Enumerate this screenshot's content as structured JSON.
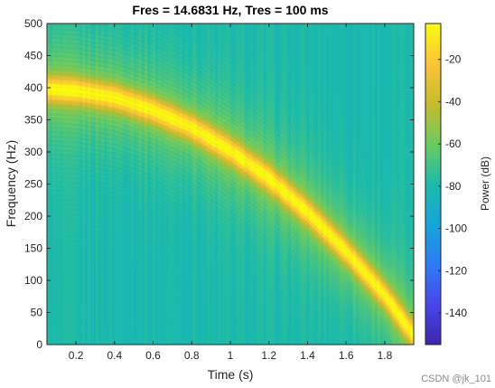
{
  "chart_data": {
    "type": "heatmap",
    "subtype": "spectrogram",
    "title": "Fres = 14.6831 Hz, Tres = 100 ms",
    "xlabel": "Time (s)",
    "ylabel": "Frequency (Hz)",
    "colorbar_label": "Power (dB)",
    "colormap": "parula",
    "xlim": [
      0.05,
      1.95
    ],
    "ylim": [
      0,
      500
    ],
    "clim": [
      -155,
      -3
    ],
    "x_ticks": [
      0.2,
      0.4,
      0.6,
      0.8,
      1,
      1.2,
      1.4,
      1.6,
      1.8
    ],
    "y_ticks": [
      0,
      50,
      100,
      150,
      200,
      250,
      300,
      350,
      400,
      450,
      500
    ],
    "colorbar_ticks": [
      -20,
      -40,
      -60,
      -80,
      -100,
      -120,
      -140
    ],
    "background_level_db": -80,
    "ridge": {
      "description": "peak power track",
      "peak_db": -3,
      "points": [
        {
          "t": 0.05,
          "f": 398
        },
        {
          "t": 0.2,
          "f": 395
        },
        {
          "t": 0.4,
          "f": 385
        },
        {
          "t": 0.6,
          "f": 365
        },
        {
          "t": 0.8,
          "f": 338
        },
        {
          "t": 1.0,
          "f": 302
        },
        {
          "t": 1.2,
          "f": 259
        },
        {
          "t": 1.4,
          "f": 206
        },
        {
          "t": 1.6,
          "f": 145
        },
        {
          "t": 1.8,
          "f": 77
        },
        {
          "t": 1.9,
          "f": 35
        }
      ]
    }
  },
  "watermark": "CSDN @jk_101"
}
